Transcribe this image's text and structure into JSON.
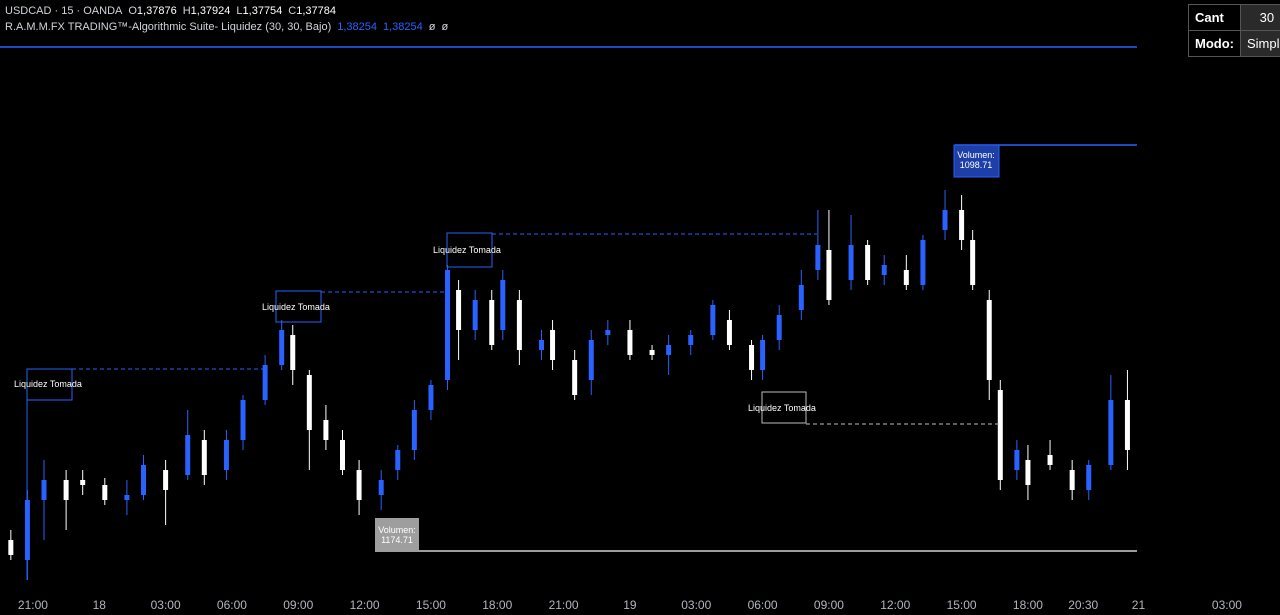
{
  "header": {
    "symbol": "USDCAD · 15 · OANDA",
    "ohlc": [
      {
        "label": "O",
        "value": "1,37876"
      },
      {
        "label": "H",
        "value": "1,37924"
      },
      {
        "label": "L",
        "value": "1,37754"
      },
      {
        "label": "C",
        "value": "1,37784"
      }
    ],
    "indicator": {
      "name": "R.A.M.M.FX TRADING™-Algorithmic Suite- Liquidez (30, 30, Bajo)",
      "values": [
        "1,38254",
        "1,38254"
      ],
      "extras": [
        "ø",
        "ø"
      ]
    }
  },
  "settings": {
    "rows": [
      [
        "Cant",
        "30"
      ],
      [
        "Modo:",
        "Simple"
      ]
    ]
  },
  "annotations": {
    "liquidity": [
      "Liquidez Tomada",
      "Liquidez Tomada",
      "Liquidez Tomada",
      "Liquidez Tomada"
    ],
    "volume_high": {
      "label": "Volumen:",
      "value": "1098.71"
    },
    "volume_low": {
      "label": "Volumen:",
      "value": "1174.71"
    }
  },
  "chart_data": {
    "type": "candlestick",
    "up_color": "#2962ff",
    "down_color": "#ffffff",
    "xlim": [
      -1.49,
      56.4
    ],
    "ylim": [
      1.37644,
      1.38186
    ],
    "xticks": [
      {
        "value": 0,
        "label": "21:00"
      },
      {
        "value": 3,
        "label": "18"
      },
      {
        "value": 6,
        "label": "03:00"
      },
      {
        "value": 9,
        "label": "06:00"
      },
      {
        "value": 12,
        "label": "09:00"
      },
      {
        "value": 15,
        "label": "12:00"
      },
      {
        "value": 18,
        "label": "15:00"
      },
      {
        "value": 21,
        "label": "18:00"
      },
      {
        "value": 24,
        "label": "21:00"
      },
      {
        "value": 27,
        "label": "19"
      },
      {
        "value": 30,
        "label": "03:00"
      },
      {
        "value": 33,
        "label": "06:00"
      },
      {
        "value": 36,
        "label": "09:00"
      },
      {
        "value": 39,
        "label": "12:00"
      },
      {
        "value": 42,
        "label": "15:00"
      },
      {
        "value": 45,
        "label": "18:00"
      },
      {
        "value": 47.5,
        "label": "20:30"
      },
      {
        "value": 50,
        "label": "21"
      },
      {
        "value": 54,
        "label": "03:00"
      }
    ],
    "x": [
      -1,
      -0.25,
      0.5,
      1.5,
      2.25,
      3.25,
      4.25,
      5,
      6,
      7,
      7.75,
      8.75,
      9.5,
      10.5,
      11.25,
      11.75,
      12.5,
      13.25,
      14,
      14.75,
      15.75,
      16.5,
      17.25,
      18,
      18.75,
      19.25,
      20,
      20.75,
      21.25,
      22,
      23,
      23.5,
      24.5,
      25.25,
      26,
      27,
      28,
      28.75,
      29.75,
      30.75,
      31.5,
      32.5,
      33,
      33.75,
      34.75,
      35.5,
      36,
      37,
      37.75,
      38.5,
      39.5,
      40.25,
      41.25,
      42,
      42.5,
      43.25,
      43.75,
      44.5,
      45,
      46,
      47,
      47.75,
      48.75,
      49.5
    ],
    "open": [
      1.37694,
      1.37674,
      1.37734,
      1.37754,
      1.37754,
      1.37749,
      1.37734,
      1.37739,
      1.37764,
      1.37759,
      1.37794,
      1.37764,
      1.37794,
      1.37834,
      1.37869,
      1.37899,
      1.37859,
      1.37814,
      1.37794,
      1.37764,
      1.37739,
      1.37764,
      1.37784,
      1.37824,
      1.37854,
      1.37944,
      1.37904,
      1.37934,
      1.37904,
      1.37934,
      1.37884,
      1.37904,
      1.37874,
      1.37854,
      1.37899,
      1.37904,
      1.37884,
      1.37879,
      1.37889,
      1.37899,
      1.37914,
      1.37889,
      1.37864,
      1.37894,
      1.37924,
      1.37964,
      1.37984,
      1.37954,
      1.37989,
      1.37959,
      1.37964,
      1.37949,
      1.38004,
      1.38024,
      1.37994,
      1.37934,
      1.37844,
      1.37764,
      1.37774,
      1.37779,
      1.37764,
      1.37744,
      1.37769,
      1.37834
    ],
    "high": [
      1.37704,
      1.37744,
      1.37774,
      1.37764,
      1.37764,
      1.37756,
      1.37754,
      1.37779,
      1.37774,
      1.37824,
      1.37804,
      1.37804,
      1.37839,
      1.37879,
      1.37914,
      1.37909,
      1.37864,
      1.37829,
      1.37804,
      1.37774,
      1.37764,
      1.37789,
      1.37834,
      1.37854,
      1.37969,
      1.37954,
      1.37944,
      1.37944,
      1.37964,
      1.37944,
      1.37904,
      1.37914,
      1.37884,
      1.37904,
      1.37914,
      1.37914,
      1.37889,
      1.37899,
      1.37904,
      1.37934,
      1.37924,
      1.37894,
      1.37899,
      1.37929,
      1.37964,
      1.38024,
      1.38024,
      1.38019,
      1.37994,
      1.37979,
      1.37979,
      1.37999,
      1.38044,
      1.38039,
      1.38004,
      1.37944,
      1.37854,
      1.37794,
      1.37789,
      1.37794,
      1.37774,
      1.37774,
      1.37859,
      1.37864
    ],
    "low": [
      1.37674,
      1.37654,
      1.37694,
      1.37704,
      1.37739,
      1.37729,
      1.37719,
      1.37734,
      1.37709,
      1.37754,
      1.37749,
      1.37754,
      1.37784,
      1.37829,
      1.37864,
      1.37849,
      1.37764,
      1.37784,
      1.37759,
      1.37719,
      1.37724,
      1.37754,
      1.37774,
      1.37814,
      1.37844,
      1.37874,
      1.37894,
      1.37884,
      1.37894,
      1.37869,
      1.37874,
      1.37864,
      1.37834,
      1.37839,
      1.37889,
      1.37874,
      1.37874,
      1.37859,
      1.37879,
      1.37894,
      1.37884,
      1.37854,
      1.37854,
      1.37884,
      1.37914,
      1.37954,
      1.37929,
      1.37944,
      1.37949,
      1.37949,
      1.37944,
      1.37944,
      1.37994,
      1.37984,
      1.37944,
      1.37834,
      1.37744,
      1.37754,
      1.37734,
      1.37764,
      1.37734,
      1.37734,
      1.37764,
      1.37764
    ],
    "close": [
      1.37679,
      1.37734,
      1.37754,
      1.37734,
      1.37749,
      1.37734,
      1.37739,
      1.37769,
      1.37744,
      1.37799,
      1.37759,
      1.37794,
      1.37834,
      1.37869,
      1.37904,
      1.37864,
      1.37804,
      1.37794,
      1.37764,
      1.37734,
      1.37754,
      1.37784,
      1.37824,
      1.37849,
      1.37964,
      1.37904,
      1.37934,
      1.37889,
      1.37954,
      1.37884,
      1.37894,
      1.37874,
      1.37839,
      1.37894,
      1.37904,
      1.37879,
      1.37879,
      1.37889,
      1.37899,
      1.37929,
      1.37889,
      1.37864,
      1.37894,
      1.37919,
      1.37949,
      1.37989,
      1.37934,
      1.37989,
      1.37954,
      1.37969,
      1.37949,
      1.37994,
      1.38024,
      1.37994,
      1.37949,
      1.37854,
      1.37754,
      1.37784,
      1.37749,
      1.37769,
      1.37744,
      1.37769,
      1.37834,
      1.37784
    ]
  }
}
